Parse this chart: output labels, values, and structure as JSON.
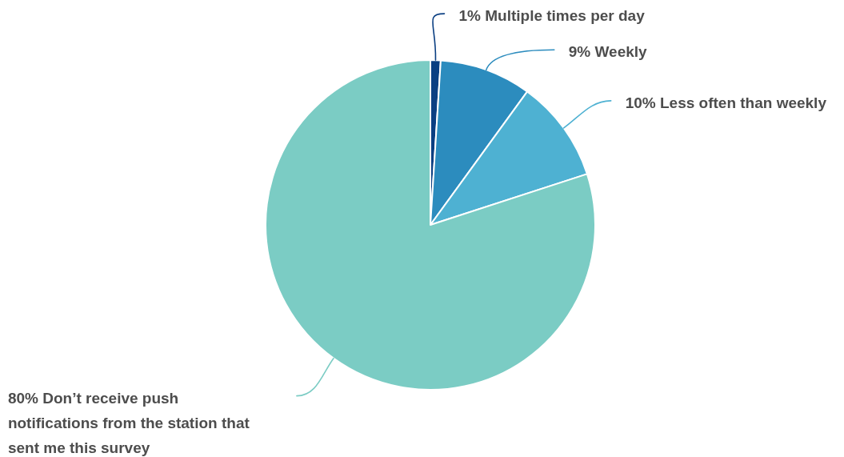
{
  "chart_data": {
    "type": "pie",
    "categories": [
      "Multiple times per day",
      "Weekly",
      "Less often than weekly",
      "Don’t receive push notifications from the station that sent me this survey"
    ],
    "values": [
      1,
      9,
      10,
      80
    ],
    "colors": [
      "#0b3f82",
      "#2c8cbe",
      "#4eb1d2",
      "#7bccc4"
    ],
    "value_labels": [
      "1%",
      "9%",
      "10%",
      "80%"
    ]
  }
}
